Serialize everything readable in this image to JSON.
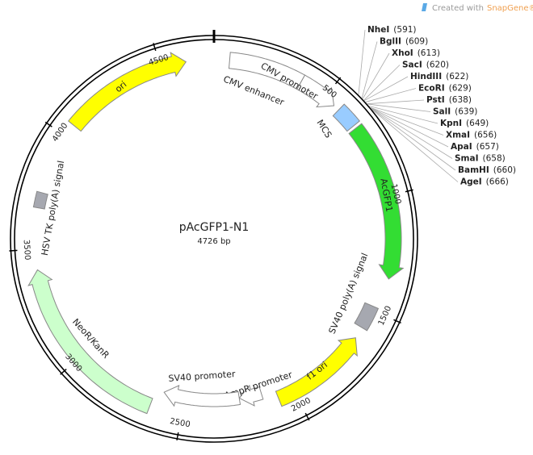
{
  "watermark": {
    "text": "Created with",
    "brand": "SnapGene®"
  },
  "plasmid": {
    "name": "pAcGFP1-N1",
    "length": {
      "value": 4726,
      "label": "4726 bp"
    }
  },
  "ticks": [
    500,
    1000,
    1500,
    2000,
    2500,
    3000,
    3500,
    4000,
    4500
  ],
  "features": [
    {
      "label": "CMV enhancer"
    },
    {
      "label": "CMV promoter"
    },
    {
      "label": "MCS"
    },
    {
      "label": "AcGFP1"
    },
    {
      "label": "SV40 poly(A) signal"
    },
    {
      "label": "f1 ori"
    },
    {
      "label": "AmpR promoter"
    },
    {
      "label": "SV40 promoter"
    },
    {
      "label": "NeoR/KanR"
    },
    {
      "label": "HSV TK poly(A) signal"
    },
    {
      "label": "ori"
    }
  ],
  "enzymes": [
    {
      "name": "NheI",
      "position": {
        "value": 591,
        "label": "(591)"
      }
    },
    {
      "name": "BglII",
      "position": {
        "value": 609,
        "label": "(609)"
      }
    },
    {
      "name": "XhoI",
      "position": {
        "value": 613,
        "label": "(613)"
      }
    },
    {
      "name": "SacI",
      "position": {
        "value": 620,
        "label": "(620)"
      }
    },
    {
      "name": "HindIII",
      "position": {
        "value": 622,
        "label": "(622)"
      }
    },
    {
      "name": "EcoRI",
      "position": {
        "value": 629,
        "label": "(629)"
      }
    },
    {
      "name": "PstI",
      "position": {
        "value": 638,
        "label": "(638)"
      }
    },
    {
      "name": "SalI",
      "position": {
        "value": 639,
        "label": "(639)"
      }
    },
    {
      "name": "KpnI",
      "position": {
        "value": 649,
        "label": "(649)"
      }
    },
    {
      "name": "XmaI",
      "position": {
        "value": 656,
        "label": "(656)"
      }
    },
    {
      "name": "ApaI",
      "position": {
        "value": 657,
        "label": "(657)"
      }
    },
    {
      "name": "SmaI",
      "position": {
        "value": 658,
        "label": "(658)"
      }
    },
    {
      "name": "BamHI",
      "position": {
        "value": 660,
        "label": "(660)"
      }
    },
    {
      "name": "AgeI",
      "position": {
        "value": 666,
        "label": "(666)"
      }
    }
  ]
}
